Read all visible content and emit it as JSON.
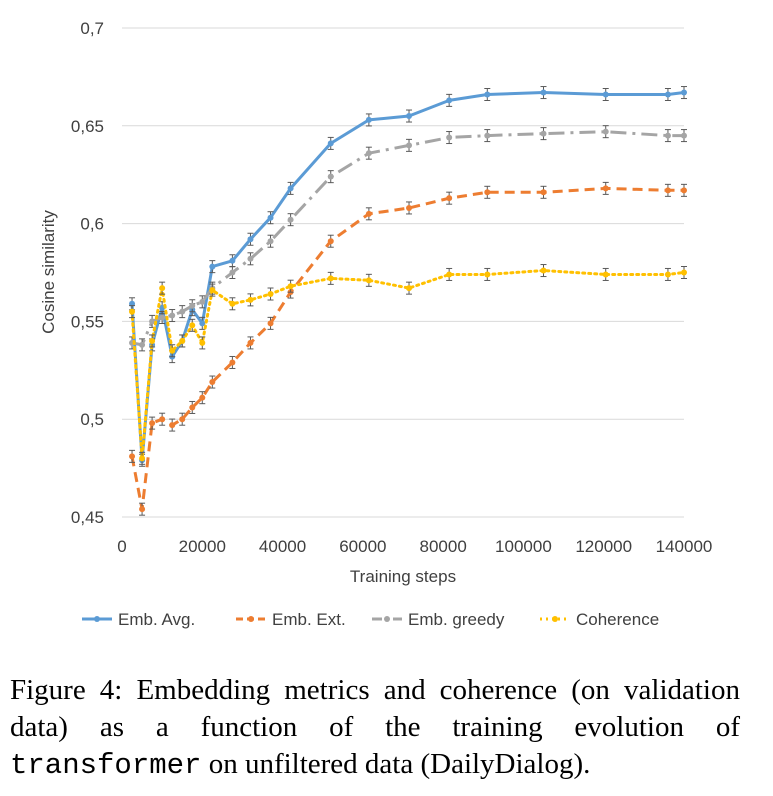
{
  "chart_data": {
    "type": "line",
    "xlabel": "Training steps",
    "ylabel": "Cosine similarity",
    "xlim": [
      0,
      140000
    ],
    "ylim": [
      0.45,
      0.7
    ],
    "xticks": [
      0,
      20000,
      40000,
      60000,
      80000,
      100000,
      120000,
      140000
    ],
    "xtick_labels": [
      "0",
      "20000",
      "40000",
      "60000",
      "80000",
      "100000",
      "120000",
      "140000"
    ],
    "yticks": [
      0.45,
      0.5,
      0.55,
      0.6,
      0.65,
      0.7
    ],
    "ytick_labels": [
      "0,45",
      "0,5",
      "0,55",
      "0,6",
      "0,65",
      "0,7"
    ],
    "grid": "horizontal",
    "legend_position": "bottom",
    "x": [
      2500,
      5000,
      7500,
      10000,
      12500,
      15000,
      17500,
      20000,
      22500,
      27500,
      32000,
      37000,
      42000,
      52000,
      61500,
      71500,
      81500,
      91000,
      105000,
      120500,
      136000,
      140000
    ],
    "series": [
      {
        "name": "Emb. Avg.",
        "color": "#5b9bd5",
        "dash": "solid",
        "values": [
          0.559,
          0.479,
          0.538,
          0.557,
          0.532,
          0.54,
          0.556,
          0.549,
          0.578,
          0.581,
          0.592,
          0.603,
          0.618,
          0.641,
          0.653,
          0.655,
          0.663,
          0.666,
          0.667,
          0.666,
          0.666,
          0.667
        ]
      },
      {
        "name": "Emb. Ext.",
        "color": "#ed7d31",
        "dash": "dash",
        "values": [
          0.481,
          0.454,
          0.498,
          0.5,
          0.497,
          0.5,
          0.506,
          0.511,
          0.519,
          0.529,
          0.539,
          0.549,
          0.565,
          0.591,
          0.605,
          0.608,
          0.613,
          0.616,
          0.616,
          0.618,
          0.617,
          0.617
        ]
      },
      {
        "name": "Emb. greedy",
        "color": "#a5a5a5",
        "dash": "dashdot",
        "values": [
          0.539,
          0.538,
          0.55,
          0.552,
          0.553,
          0.555,
          0.558,
          0.56,
          0.567,
          0.575,
          0.582,
          0.591,
          0.602,
          0.624,
          0.636,
          0.64,
          0.644,
          0.645,
          0.646,
          0.647,
          0.645,
          0.645
        ]
      },
      {
        "name": "Coherence",
        "color": "#ffc000",
        "dash": "dot",
        "values": [
          0.555,
          0.48,
          0.54,
          0.567,
          0.535,
          0.54,
          0.548,
          0.539,
          0.566,
          0.559,
          0.561,
          0.564,
          0.568,
          0.572,
          0.571,
          0.567,
          0.574,
          0.574,
          0.576,
          0.574,
          0.574,
          0.575
        ]
      }
    ]
  },
  "caption": {
    "prefix": "Figure 4: Embedding metrics and coherence (on validation data) as a function of the training evolution of ",
    "code": "transformer",
    "suffix": " on unfiltered data (DailyDialog)."
  }
}
